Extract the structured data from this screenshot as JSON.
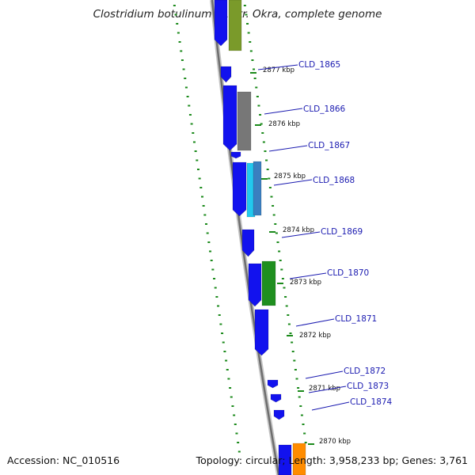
{
  "title": "Clostridium botulinum B1 str. Okra, complete genome",
  "footer": {
    "accession": "Accession: NC_010516",
    "summary": "Topology: circular; Length: 3,958,233 bp; Genes: 3,761"
  },
  "colors": {
    "backbone": "#8a8a8a",
    "forward_cds": "#1212ee",
    "gene_label": "#1a1ab0",
    "tick": "#1b8a1b",
    "olive": "#7a9a2a",
    "gray": "#777777",
    "cyan": "#22c8ee",
    "steel": "#3a7fc0",
    "green": "#1f8f1f",
    "orange": "#ff8c00"
  },
  "ticks": [
    "2877 kbp",
    "2876 kbp",
    "2875 kbp",
    "2874 kbp",
    "2873 kbp",
    "2872 kbp",
    "2871 kbp",
    "2870 kbp"
  ],
  "genes": [
    "CLD_1865",
    "CLD_1866",
    "CLD_1867",
    "CLD_1868",
    "CLD_1869",
    "CLD_1870",
    "CLD_1871",
    "CLD_1872",
    "CLD_1873",
    "CLD_1874"
  ]
}
